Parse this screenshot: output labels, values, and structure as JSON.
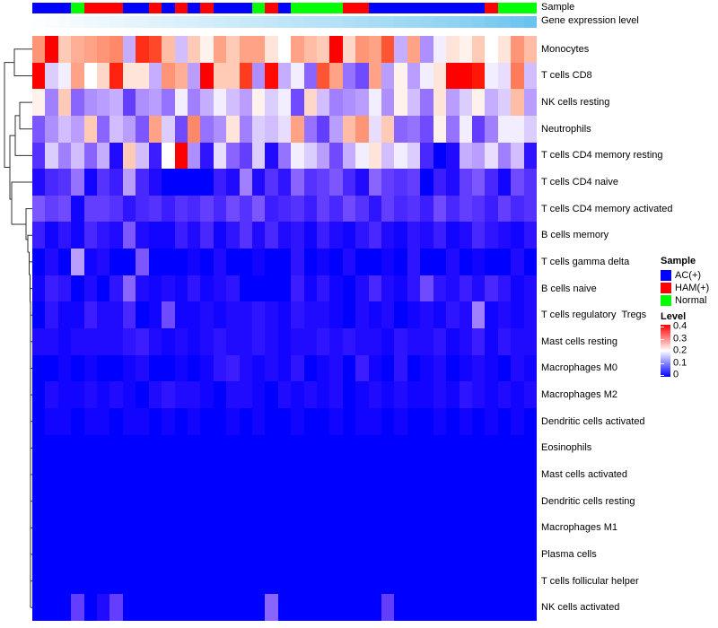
{
  "annotation_labels": {
    "sample": "Sample",
    "gene_expression": "Gene expression level"
  },
  "legend": {
    "sample": {
      "title": "Sample",
      "items": [
        {
          "label": "AC(+)",
          "color": "#0000FF"
        },
        {
          "label": "HAM(+)",
          "color": "#FF0000"
        },
        {
          "label": "Normal",
          "color": "#00FF00"
        }
      ]
    },
    "level": {
      "title": "Level",
      "ticks": [
        "0.4",
        "0.3",
        "0.2",
        "0.1",
        "0"
      ],
      "top_color": "#FF0000",
      "mid_color": "#FFFFFF",
      "bottom_color": "#0000FF"
    }
  },
  "chart_data": {
    "type": "heatmap",
    "value_range": [
      0,
      0.4
    ],
    "n_columns": 39,
    "rows": [
      "Monocytes",
      "T cells CD8",
      "NK cells resting",
      "Neutrophils",
      "T cells CD4 memory resting",
      "T cells CD4 naive",
      "T cells CD4 memory activated",
      "B cells memory",
      "T cells gamma delta",
      "B cells naive",
      "T cells regulatory  Tregs",
      "Mast cells resting",
      "Macrophages M0",
      "Macrophages M2",
      "Dendritic cells activated",
      "Eosinophils",
      "Mast cells activated",
      "Dendritic cells resting",
      "Macrophages M1",
      "Plasma cells",
      "T cells follicular helper",
      "NK cells activated"
    ],
    "column_annotations": {
      "sample": [
        "AC(+)",
        "AC(+)",
        "AC(+)",
        "Normal",
        "HAM(+)",
        "HAM(+)",
        "HAM(+)",
        "AC(+)",
        "AC(+)",
        "HAM(+)",
        "AC(+)",
        "HAM(+)",
        "AC(+)",
        "HAM(+)",
        "AC(+)",
        "AC(+)",
        "AC(+)",
        "Normal",
        "HAM(+)",
        "AC(+)",
        "Normal",
        "Normal",
        "Normal",
        "Normal",
        "HAM(+)",
        "HAM(+)",
        "AC(+)",
        "AC(+)",
        "AC(+)",
        "AC(+)",
        "AC(+)",
        "AC(+)",
        "AC(+)",
        "AC(+)",
        "AC(+)",
        "HAM(+)",
        "Normal",
        "Normal",
        "Normal"
      ],
      "gene_expression_level": [
        0.0,
        0.02,
        0.04,
        0.06,
        0.09,
        0.11,
        0.13,
        0.15,
        0.17,
        0.2,
        0.22,
        0.24,
        0.26,
        0.28,
        0.31,
        0.33,
        0.35,
        0.37,
        0.39,
        0.42,
        0.44,
        0.46,
        0.48,
        0.5,
        0.53,
        0.55,
        0.57,
        0.6,
        0.62,
        0.65,
        0.68,
        0.71,
        0.74,
        0.78,
        0.82,
        0.86,
        0.9,
        0.95,
        1.0
      ]
    },
    "annotation_colors": {
      "AC(+)": "#0000FF",
      "HAM(+)": "#FF0000",
      "Normal": "#00FF00",
      "gene_expression_gradient": [
        "#FCFEFF",
        "#69C3EE"
      ]
    },
    "heat_colors": {
      "low": "#0000FF",
      "mid": "#FFFFFF",
      "high": "#FF0000"
    },
    "values": [
      [
        0.28,
        0.4,
        0.24,
        0.26,
        0.27,
        0.28,
        0.29,
        0.15,
        0.36,
        0.34,
        0.25,
        0.16,
        0.24,
        0.21,
        0.27,
        0.24,
        0.27,
        0.27,
        0.22,
        0.2,
        0.27,
        0.25,
        0.24,
        0.4,
        0.23,
        0.28,
        0.27,
        0.33,
        0.15,
        0.27,
        0.13,
        0.19,
        0.22,
        0.21,
        0.24,
        0.2,
        0.22,
        0.28,
        0.25
      ],
      [
        0.4,
        0.17,
        0.19,
        0.27,
        0.2,
        0.23,
        0.37,
        0.22,
        0.22,
        0.15,
        0.28,
        0.26,
        0.14,
        0.4,
        0.24,
        0.24,
        0.35,
        0.13,
        0.39,
        0.15,
        0.19,
        0.1,
        0.33,
        0.27,
        0.11,
        0.08,
        0.27,
        0.14,
        0.21,
        0.14,
        0.19,
        0.22,
        0.4,
        0.4,
        0.38,
        0.19,
        0.18,
        0.3,
        0.16
      ],
      [
        0.21,
        0.12,
        0.24,
        0.1,
        0.13,
        0.14,
        0.15,
        0.07,
        0.13,
        0.14,
        0.11,
        0.19,
        0.12,
        0.15,
        0.19,
        0.16,
        0.14,
        0.21,
        0.17,
        0.19,
        0.08,
        0.23,
        0.16,
        0.12,
        0.13,
        0.14,
        0.19,
        0.13,
        0.21,
        0.16,
        0.11,
        0.22,
        0.14,
        0.17,
        0.21,
        0.15,
        0.17,
        0.25,
        0.14
      ],
      [
        0.09,
        0.13,
        0.16,
        0.14,
        0.24,
        0.1,
        0.16,
        0.14,
        0.09,
        0.27,
        0.17,
        0.08,
        0.29,
        0.11,
        0.13,
        0.22,
        0.12,
        0.17,
        0.16,
        0.18,
        0.27,
        0.11,
        0.07,
        0.14,
        0.25,
        0.28,
        0.18,
        0.24,
        0.1,
        0.11,
        0.08,
        0.21,
        0.11,
        0.19,
        0.07,
        0.12,
        0.19,
        0.19,
        0.17
      ],
      [
        0.06,
        0.17,
        0.12,
        0.16,
        0.1,
        0.15,
        0.02,
        0.24,
        0.16,
        0.04,
        0.2,
        0.4,
        0.13,
        0.03,
        0.18,
        0.1,
        0.07,
        0.17,
        0.02,
        0.11,
        0.19,
        0.17,
        0.14,
        0.08,
        0.15,
        0.19,
        0.22,
        0.16,
        0.19,
        0.17,
        0.05,
        0.0,
        0.02,
        0.15,
        0.14,
        0.18,
        0.12,
        0.16,
        0.03
      ],
      [
        0.02,
        0.05,
        0.06,
        0.11,
        0.01,
        0.06,
        0.04,
        0.14,
        0.05,
        0.02,
        0.0,
        0.0,
        0.0,
        0.0,
        0.04,
        0.02,
        0.12,
        0.02,
        0.06,
        0.03,
        0.1,
        0.06,
        0.07,
        0.09,
        0.05,
        0.02,
        0.1,
        0.07,
        0.06,
        0.07,
        0.0,
        0.04,
        0.02,
        0.07,
        0.09,
        0.05,
        0.01,
        0.08,
        0.06
      ],
      [
        0.09,
        0.07,
        0.08,
        0.01,
        0.07,
        0.07,
        0.06,
        0.03,
        0.05,
        0.06,
        0.04,
        0.06,
        0.05,
        0.07,
        0.05,
        0.08,
        0.06,
        0.09,
        0.04,
        0.05,
        0.06,
        0.04,
        0.07,
        0.05,
        0.08,
        0.06,
        0.03,
        0.07,
        0.05,
        0.06,
        0.04,
        0.08,
        0.05,
        0.07,
        0.06,
        0.04,
        0.07,
        0.05,
        0.06
      ],
      [
        0.04,
        0.01,
        0.03,
        0.01,
        0.05,
        0.03,
        0.02,
        0.09,
        0.02,
        0.01,
        0.01,
        0.04,
        0.02,
        0.05,
        0.01,
        0.03,
        0.06,
        0.02,
        0.05,
        0.02,
        0.03,
        0.01,
        0.04,
        0.02,
        0.01,
        0.03,
        0.05,
        0.02,
        0.01,
        0.03,
        0.02,
        0.04,
        0.01,
        0.02,
        0.05,
        0.03,
        0.02,
        0.01,
        0.03
      ],
      [
        0.0,
        0.02,
        0.0,
        0.14,
        0.01,
        0.02,
        0.0,
        0.0,
        0.09,
        0.0,
        0.0,
        0.0,
        0.01,
        0.0,
        0.02,
        0.0,
        0.0,
        0.01,
        0.0,
        0.0,
        0.03,
        0.0,
        0.01,
        0.0,
        0.02,
        0.0,
        0.0,
        0.01,
        0.0,
        0.03,
        0.0,
        0.0,
        0.02,
        0.0,
        0.01,
        0.0,
        0.0,
        0.02,
        0.0
      ],
      [
        0.01,
        0.04,
        0.03,
        0.0,
        0.02,
        0.0,
        0.03,
        0.1,
        0.02,
        0.01,
        0.02,
        0.01,
        0.03,
        0.01,
        0.02,
        0.03,
        0.0,
        0.0,
        0.0,
        0.0,
        0.04,
        0.01,
        0.03,
        0.01,
        0.0,
        0.02,
        0.05,
        0.02,
        0.01,
        0.03,
        0.08,
        0.03,
        0.02,
        0.04,
        0.02,
        0.05,
        0.03,
        0.01,
        0.02
      ],
      [
        0.0,
        0.03,
        0.01,
        0.01,
        0.04,
        0.02,
        0.02,
        0.05,
        0.0,
        0.01,
        0.08,
        0.01,
        0.01,
        0.02,
        0.01,
        0.02,
        0.02,
        0.03,
        0.02,
        0.01,
        0.03,
        0.02,
        0.02,
        0.01,
        0.0,
        0.02,
        0.01,
        0.02,
        0.0,
        0.01,
        0.02,
        0.01,
        0.03,
        0.02,
        0.12,
        0.01,
        0.02,
        0.01,
        0.02
      ],
      [
        0.02,
        0.02,
        0.01,
        0.02,
        0.02,
        0.02,
        0.02,
        0.03,
        0.04,
        0.02,
        0.01,
        0.02,
        0.01,
        0.02,
        0.03,
        0.02,
        0.02,
        0.03,
        0.02,
        0.01,
        0.02,
        0.02,
        0.03,
        0.02,
        0.03,
        0.02,
        0.02,
        0.01,
        0.03,
        0.02,
        0.02,
        0.03,
        0.01,
        0.02,
        0.04,
        0.01,
        0.03,
        0.02,
        0.02
      ],
      [
        0.0,
        0.0,
        0.01,
        0.0,
        0.01,
        0.0,
        0.0,
        0.01,
        0.02,
        0.0,
        0.0,
        0.01,
        0.0,
        0.01,
        0.03,
        0.04,
        0.02,
        0.01,
        0.02,
        0.01,
        0.03,
        0.0,
        0.01,
        0.02,
        0.0,
        0.04,
        0.01,
        0.0,
        0.03,
        0.0,
        0.01,
        0.02,
        0.0,
        0.01,
        0.02,
        0.01,
        0.0,
        0.02,
        0.01
      ],
      [
        0.0,
        0.02,
        0.01,
        0.01,
        0.02,
        0.01,
        0.02,
        0.01,
        0.0,
        0.02,
        0.03,
        0.02,
        0.02,
        0.01,
        0.0,
        0.02,
        0.02,
        0.01,
        0.0,
        0.02,
        0.01,
        0.02,
        0.01,
        0.02,
        0.0,
        0.01,
        0.02,
        0.01,
        0.02,
        0.01,
        0.01,
        0.02,
        0.01,
        0.03,
        0.02,
        0.01,
        0.02,
        0.01,
        0.02
      ],
      [
        0.0,
        0.01,
        0.01,
        0.0,
        0.01,
        0.01,
        0.0,
        0.01,
        0.01,
        0.0,
        0.01,
        0.0,
        0.01,
        0.0,
        0.0,
        0.01,
        0.0,
        0.01,
        0.0,
        0.0,
        0.01,
        0.0,
        0.0,
        0.01,
        0.0,
        0.01,
        0.01,
        0.0,
        0.01,
        0.0,
        0.0,
        0.01,
        0.0,
        0.01,
        0.0,
        0.01,
        0.0,
        0.01,
        0.0
      ],
      [
        0,
        0,
        0,
        0,
        0,
        0,
        0,
        0,
        0,
        0,
        0,
        0,
        0,
        0,
        0,
        0,
        0,
        0,
        0,
        0,
        0,
        0,
        0,
        0,
        0,
        0,
        0,
        0,
        0,
        0,
        0,
        0,
        0,
        0,
        0,
        0,
        0,
        0,
        0
      ],
      [
        0,
        0,
        0,
        0,
        0,
        0,
        0,
        0,
        0,
        0,
        0,
        0,
        0,
        0,
        0,
        0,
        0,
        0,
        0,
        0,
        0,
        0,
        0,
        0,
        0,
        0,
        0,
        0,
        0,
        0,
        0,
        0,
        0,
        0,
        0,
        0,
        0,
        0,
        0
      ],
      [
        0,
        0,
        0,
        0,
        0,
        0,
        0,
        0,
        0,
        0,
        0,
        0,
        0,
        0,
        0,
        0,
        0,
        0,
        0,
        0,
        0,
        0,
        0,
        0,
        0,
        0,
        0,
        0,
        0,
        0,
        0,
        0,
        0,
        0,
        0,
        0,
        0,
        0,
        0
      ],
      [
        0,
        0,
        0,
        0,
        0,
        0,
        0,
        0,
        0,
        0,
        0,
        0,
        0,
        0,
        0,
        0,
        0,
        0,
        0,
        0,
        0,
        0,
        0,
        0,
        0,
        0,
        0,
        0,
        0,
        0,
        0,
        0,
        0,
        0,
        0,
        0,
        0,
        0,
        0
      ],
      [
        0,
        0,
        0,
        0,
        0,
        0,
        0,
        0,
        0,
        0,
        0,
        0,
        0,
        0,
        0,
        0,
        0,
        0,
        0,
        0,
        0,
        0,
        0,
        0,
        0,
        0,
        0,
        0,
        0,
        0,
        0,
        0,
        0,
        0,
        0,
        0,
        0,
        0,
        0
      ],
      [
        0,
        0,
        0,
        0,
        0,
        0,
        0,
        0,
        0,
        0,
        0,
        0,
        0,
        0,
        0,
        0,
        0,
        0,
        0,
        0,
        0,
        0,
        0,
        0,
        0,
        0,
        0,
        0,
        0,
        0,
        0,
        0,
        0,
        0,
        0,
        0,
        0,
        0,
        0
      ],
      [
        0.0,
        0.0,
        0.0,
        0.07,
        0.0,
        0.02,
        0.07,
        0.0,
        0.0,
        0.0,
        0.0,
        0.0,
        0.0,
        0.0,
        0.0,
        0.0,
        0.0,
        0.0,
        0.1,
        0.0,
        0.0,
        0.0,
        0.0,
        0.0,
        0.0,
        0.0,
        0.0,
        0.07,
        0.0,
        0.0,
        0.0,
        0.0,
        0.0,
        0.0,
        0.0,
        0.0,
        0.0,
        0.0,
        0.0
      ]
    ]
  }
}
